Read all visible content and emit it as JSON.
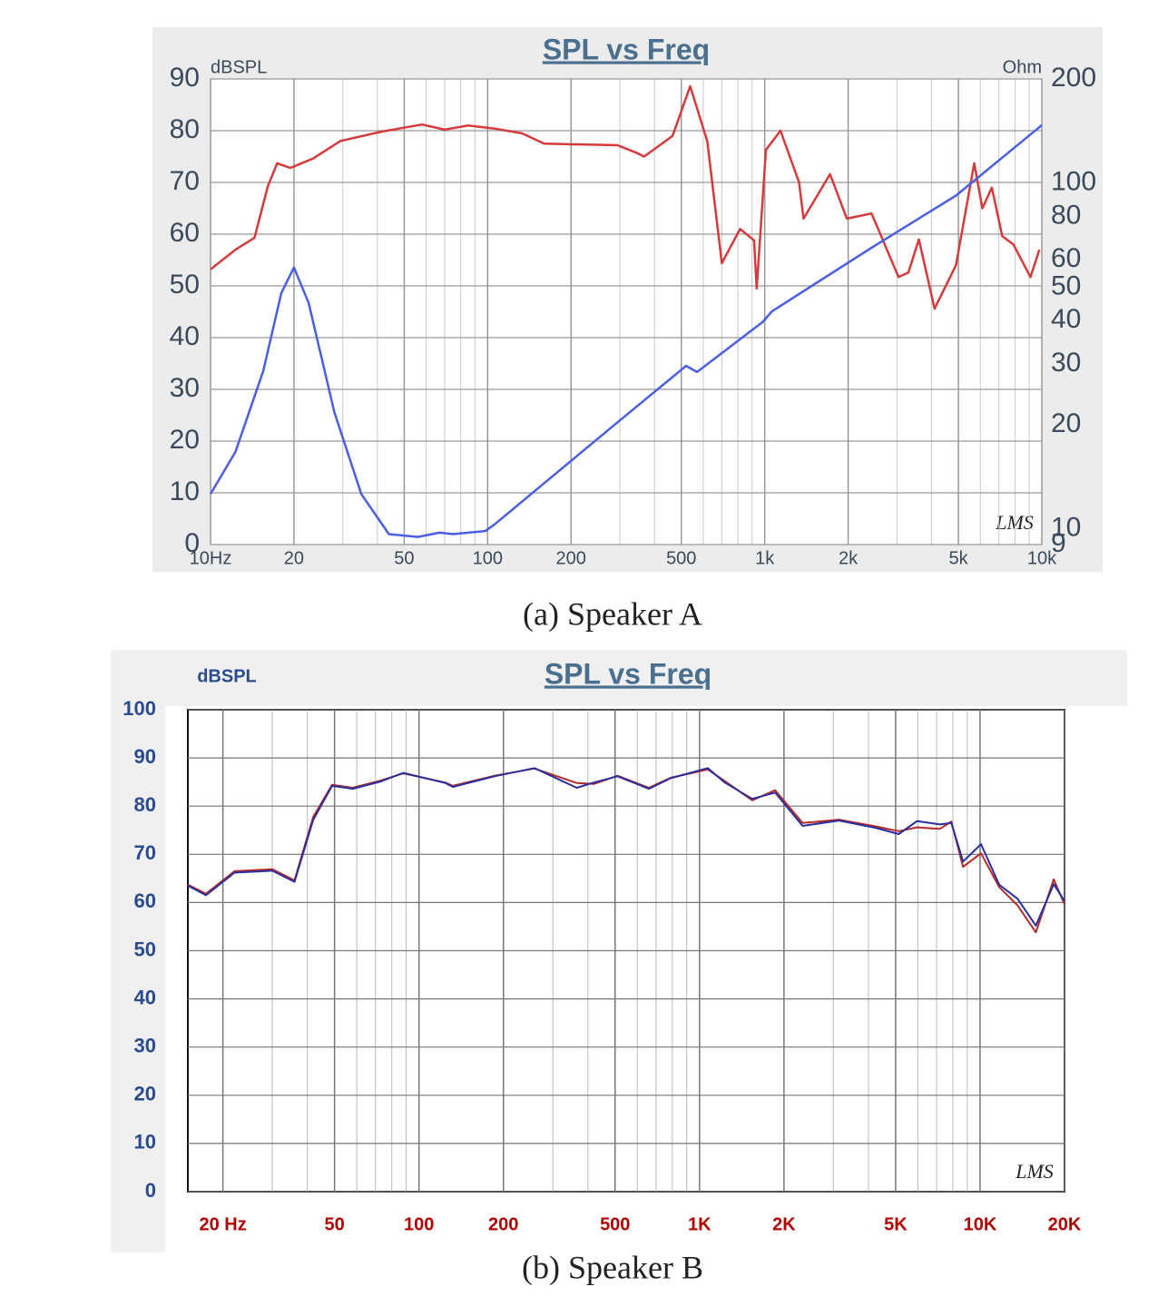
{
  "chart_data": [
    {
      "type": "line",
      "title": "SPL vs Freq",
      "caption": "(a) Speaker A",
      "annotation": "LMS",
      "y_label": "dBSPL",
      "y2_label": "Ohm",
      "xscale": "log",
      "y2scale": "log",
      "grid": true,
      "xlim": [
        10,
        10000
      ],
      "ylim": [
        0,
        90
      ],
      "y2lim": [
        9,
        200
      ],
      "xticks": [
        {
          "value": 10,
          "label": "10Hz"
        },
        20,
        50,
        100,
        200,
        500,
        {
          "value": 1000,
          "label": "1k"
        },
        {
          "value": 2000,
          "label": "2k"
        },
        {
          "value": 5000,
          "label": "5k"
        },
        {
          "value": 10000,
          "label": "10k"
        }
      ],
      "yticks": [
        0,
        10,
        20,
        30,
        40,
        50,
        60,
        70,
        80,
        90
      ],
      "y2ticks": [
        9,
        10,
        20,
        30,
        40,
        50,
        60,
        80,
        100,
        200
      ],
      "series": [
        {
          "color": "#d63a3a",
          "axis": "y",
          "x": [
            10,
            12.3,
            14.4,
            16.1,
            17.4,
            19.4,
            23.4,
            29.4,
            41.3,
            58,
            70,
            85,
            106,
            133,
            160,
            294,
            342,
            367,
            465,
            538,
            620,
            700,
            815,
            915,
            935,
            1010,
            1140,
            1330,
            1380,
            1720,
            1980,
            2430,
            3040,
            3300,
            3600,
            4100,
            4900,
            5700,
            6100,
            6600,
            7200,
            7900,
            9100,
            9800
          ],
          "values": [
            53.2,
            57,
            59.3,
            69.3,
            73.7,
            72.8,
            74.6,
            78,
            79.8,
            81.2,
            80.2,
            81,
            80.4,
            79.5,
            77.5,
            77.2,
            75.8,
            75,
            79,
            88.6,
            78,
            54.4,
            61,
            58.8,
            49.5,
            76.3,
            80,
            70,
            63,
            71.6,
            63,
            64,
            51.7,
            52.6,
            59,
            45.6,
            54,
            73.7,
            65,
            69,
            59.6,
            58,
            51.7,
            57
          ]
        },
        {
          "color": "#4a5ee6",
          "axis": "y2",
          "x": [
            10,
            12.3,
            15.5,
            18,
            20,
            22.6,
            28,
            35,
            44,
            56,
            67,
            75,
            98,
            106,
            294,
            520,
            570,
            985,
            1060,
            2430,
            4900,
            10000
          ],
          "values": [
            12.6,
            16.7,
            28.6,
            48,
            57,
            45,
            21.7,
            12.6,
            9.65,
            9.47,
            9.74,
            9.65,
            9.85,
            10.3,
            20.3,
            29.6,
            28.4,
            39.7,
            42.5,
            65,
            92,
            147
          ]
        }
      ]
    },
    {
      "type": "line",
      "title": "SPL vs Freq",
      "caption": "(b) Speaker B",
      "annotation": "LMS",
      "y_label": "dBSPL",
      "xscale": "log",
      "grid": true,
      "xlim": [
        15,
        20000
      ],
      "ylim": [
        0,
        100
      ],
      "xticks": [
        {
          "value": 20,
          "label": "20 Hz"
        },
        50,
        100,
        200,
        500,
        {
          "value": 1000,
          "label": "1K"
        },
        {
          "value": 2000,
          "label": "2K"
        },
        {
          "value": 5000,
          "label": "5K"
        },
        {
          "value": 10000,
          "label": "10K"
        },
        {
          "value": 20000,
          "label": "20K"
        }
      ],
      "yticks": [
        0,
        10,
        20,
        30,
        40,
        50,
        60,
        70,
        80,
        90,
        100
      ],
      "x": [
        15,
        17.4,
        22,
        30,
        36,
        42,
        49,
        58,
        73,
        88,
        124,
        132,
        186,
        258,
        365,
        420,
        510,
        660,
        790,
        1070,
        1230,
        1540,
        1860,
        2330,
        3140,
        4240,
        5130,
        5960,
        7200,
        7900,
        8700,
        10080,
        11700,
        13600,
        15800,
        18300,
        20000
      ],
      "series": [
        {
          "color": "#b52a2a",
          "values": [
            63.7,
            61.8,
            66.5,
            66.9,
            64.6,
            77.8,
            84.4,
            83.8,
            85.3,
            86.8,
            84.9,
            84.2,
            86.3,
            87.8,
            84.8,
            84.6,
            86.3,
            83.8,
            85.9,
            87.6,
            85.2,
            81.2,
            83.3,
            76.5,
            77.2,
            75.8,
            74.8,
            75.6,
            75.3,
            76.8,
            67.4,
            70.2,
            63.2,
            59.4,
            53.8,
            64.8,
            59.6
          ]
        },
        {
          "color": "#2b2f9e",
          "values": [
            63.5,
            61.5,
            66.2,
            66.6,
            64.3,
            77.2,
            84.2,
            83.6,
            85.1,
            86.9,
            84.8,
            84.0,
            86.2,
            87.9,
            83.8,
            84.9,
            86.2,
            83.6,
            85.8,
            87.9,
            84.9,
            81.5,
            82.8,
            75.9,
            77.0,
            75.5,
            74.2,
            76.9,
            76.2,
            76.5,
            68.5,
            72.1,
            63.7,
            60.8,
            55.2,
            63.8,
            60.3
          ]
        }
      ]
    }
  ]
}
